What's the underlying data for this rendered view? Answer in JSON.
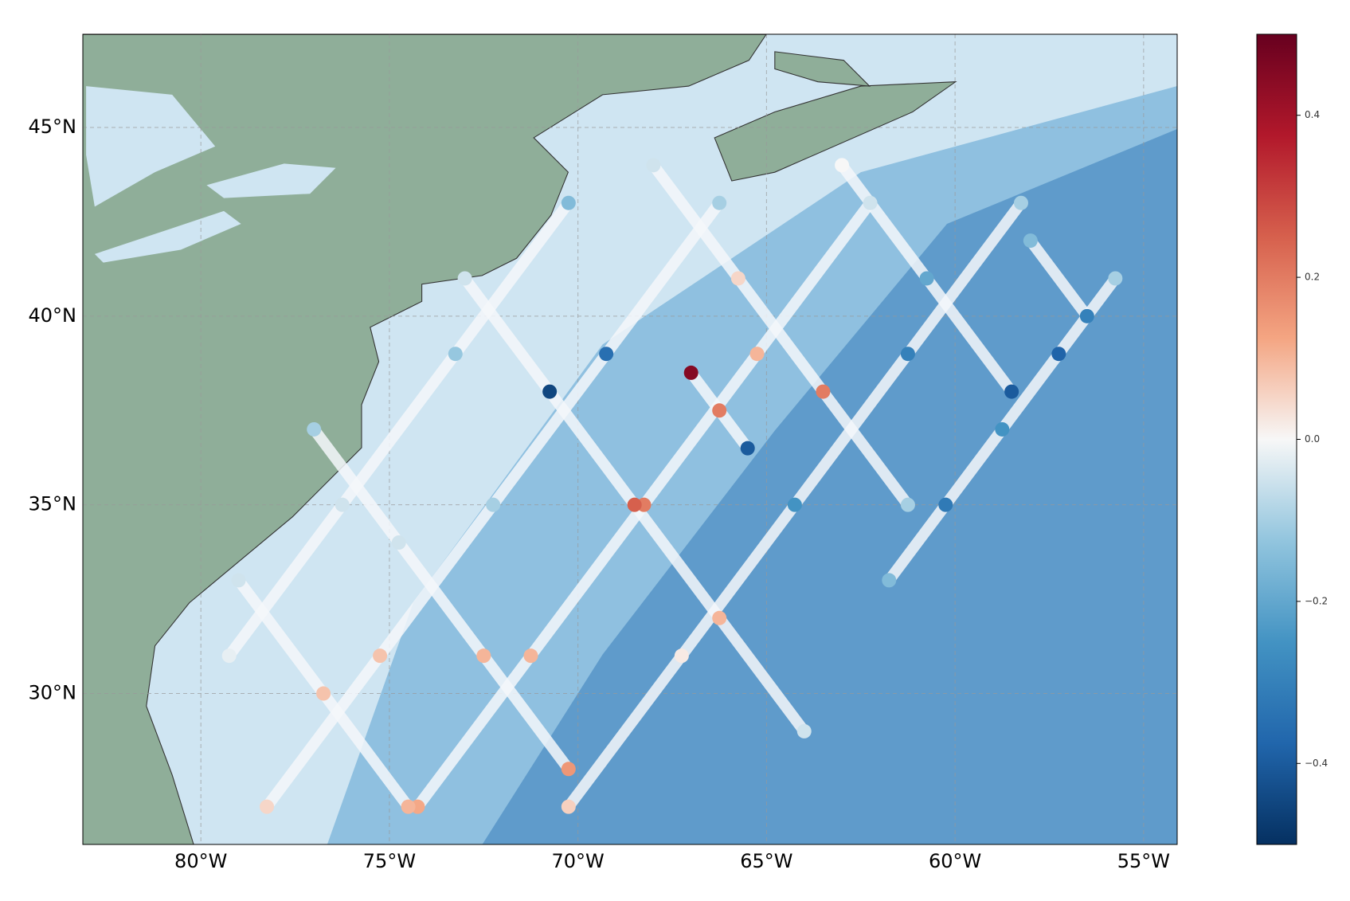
{
  "chart_data": {
    "type": "map",
    "xlim": [
      -83.13,
      -54.11
    ],
    "ylim": [
      26.0,
      47.47
    ],
    "xticks": [
      {
        "value": -80,
        "label": "80°W"
      },
      {
        "value": -75,
        "label": "75°W"
      },
      {
        "value": -70,
        "label": "70°W"
      },
      {
        "value": -65,
        "label": "65°W"
      },
      {
        "value": -60,
        "label": "60°W"
      },
      {
        "value": -55,
        "label": "55°W"
      }
    ],
    "yticks": [
      {
        "value": 30,
        "label": "30°N"
      },
      {
        "value": 35,
        "label": "35°N"
      },
      {
        "value": 40,
        "label": "40°N"
      },
      {
        "value": 45,
        "label": "45°N"
      }
    ],
    "grid": true,
    "colormap": "RdBu_r",
    "clim": [
      -0.5,
      0.5
    ],
    "cticks": [
      {
        "value": -0.4,
        "label": "−0.4"
      },
      {
        "value": -0.2,
        "label": "−0.2"
      },
      {
        "value": 0,
        "label": "0.0"
      },
      0.2,
      0.4
    ],
    "series": [
      {
        "x": [
          -78.25,
          -75.25,
          -72.25,
          -69.25,
          -66.25
        ],
        "y": [
          27,
          31,
          35,
          39,
          43
        ],
        "values": [
          0.05,
          0.08,
          -0.1,
          -0.35,
          -0.1
        ]
      },
      {
        "x": [
          -74.25,
          -71.25,
          -68.25,
          -65.25,
          -62.25
        ],
        "y": [
          27,
          31,
          35,
          39,
          43
        ],
        "values": [
          0.12,
          0.1,
          0.2,
          0.1,
          -0.05
        ]
      },
      {
        "x": [
          -70.25,
          -67.25,
          -64.25,
          -61.25,
          -58.25
        ],
        "y": [
          27,
          31,
          35,
          39,
          43
        ],
        "values": [
          0.06,
          0.02,
          -0.25,
          -0.3,
          -0.1
        ]
      },
      {
        "x": [
          -79.25,
          -76.25,
          -73.25,
          -70.25
        ],
        "y": [
          31,
          35,
          39,
          43
        ],
        "values": [
          -0.02,
          -0.05,
          -0.12,
          -0.15
        ]
      },
      {
        "x": [
          -61.75,
          -60.25,
          -58.75,
          -57.25,
          -55.75
        ],
        "y": [
          33,
          35,
          37,
          39,
          41
        ],
        "values": [
          -0.15,
          -0.32,
          -0.25,
          -0.38,
          -0.1
        ]
      },
      {
        "x": [
          -68,
          -65.75,
          -63.5,
          -61.25
        ],
        "y": [
          44,
          41,
          38,
          35
        ],
        "values": [
          -0.05,
          0.05,
          0.2,
          -0.1
        ]
      },
      {
        "x": [
          -73,
          -70.75,
          -68.5,
          -66.25,
          -64
        ],
        "y": [
          41,
          38,
          35,
          32,
          29
        ],
        "values": [
          -0.05,
          -0.45,
          0.25,
          0.1,
          -0.05
        ]
      },
      {
        "x": [
          -77,
          -74.75,
          -72.5,
          -70.25
        ],
        "y": [
          37,
          34,
          31,
          28
        ],
        "values": [
          -0.1,
          -0.05,
          0.1,
          0.15
        ]
      },
      {
        "x": [
          -79,
          -76.75,
          -74.5
        ],
        "y": [
          33,
          30,
          27
        ],
        "values": [
          -0.05,
          0.08,
          0.1
        ]
      },
      {
        "x": [
          -63,
          -60.75,
          -58.5
        ],
        "y": [
          44,
          41,
          38
        ],
        "values": [
          0.0,
          -0.2,
          -0.4
        ]
      },
      {
        "x": [
          -58,
          -56.5
        ],
        "y": [
          42,
          40
        ],
        "values": [
          -0.15,
          -0.3
        ]
      },
      {
        "x": [
          -67,
          -66.25,
          -65.5
        ],
        "y": [
          38.5,
          37.5,
          36.5
        ],
        "values": [
          0.45,
          0.2,
          -0.4
        ]
      }
    ]
  }
}
